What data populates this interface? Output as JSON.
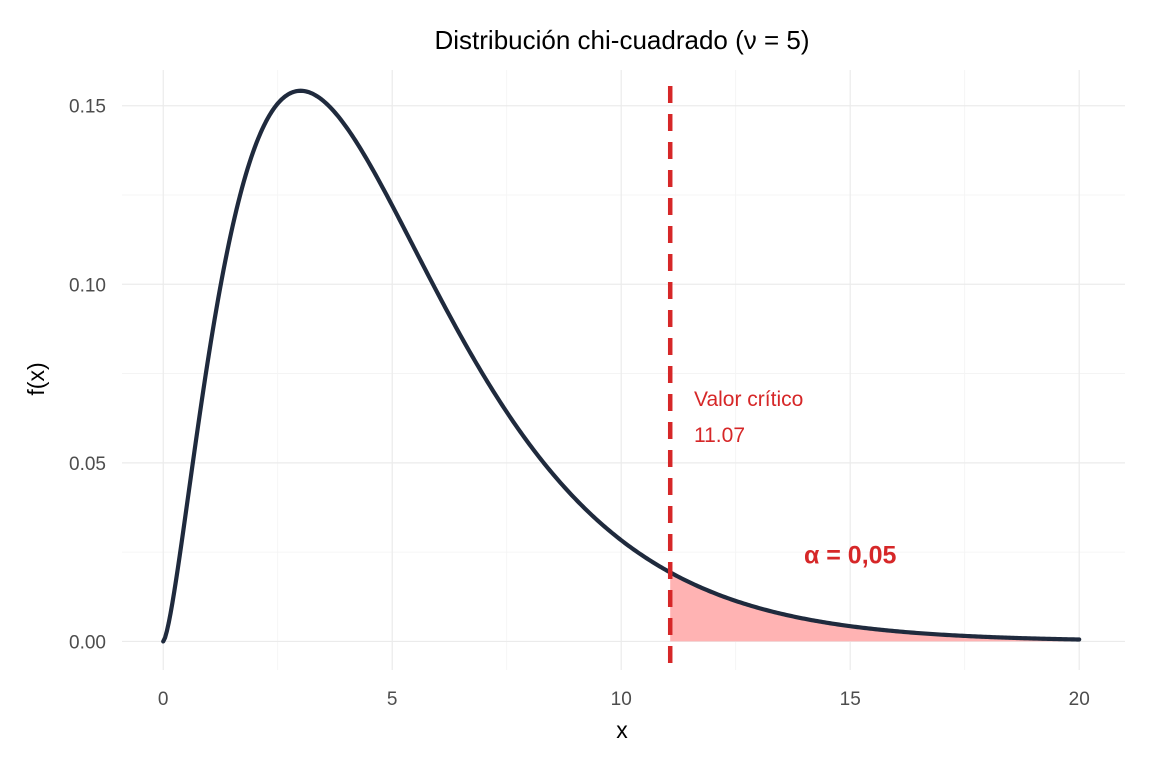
{
  "chart_data": {
    "type": "line",
    "title": "Distribución chi-cuadrado (ν = 5)",
    "xlabel": "x",
    "ylabel": "f(x)",
    "xlim": [
      -0.9,
      21
    ],
    "ylim": [
      -0.008,
      0.16
    ],
    "x_ticks": [
      0,
      5,
      10,
      15,
      20
    ],
    "x_tick_labels": [
      "0",
      "5",
      "10",
      "15",
      "20"
    ],
    "y_ticks": [
      0.0,
      0.05,
      0.1,
      0.15
    ],
    "y_tick_labels": [
      "0.00",
      "0.05",
      "0.10",
      "0.15"
    ],
    "grid": true,
    "series": [
      {
        "degrees_of_freedom": 5,
        "color": "#1f2a3d",
        "x": [
          0,
          0.25,
          0.5,
          0.75,
          1,
          1.5,
          2,
          2.5,
          3,
          3.5,
          4,
          4.5,
          5,
          5.5,
          6,
          6.5,
          7,
          7.5,
          8,
          8.5,
          9,
          9.5,
          10,
          10.5,
          11,
          11.07,
          11.5,
          12,
          12.5,
          13,
          13.5,
          14,
          14.5,
          15,
          15.5,
          16,
          16.5,
          17,
          17.5,
          18,
          18.5,
          19,
          19.5,
          20
        ],
        "y": [
          0,
          0.0087,
          0.0366,
          0.0684,
          0.0807,
          0.1168,
          0.1384,
          0.15,
          0.1542,
          0.1531,
          0.1465,
          0.1384,
          0.122,
          0.1097,
          0.0973,
          0.0855,
          0.0744,
          0.0642,
          0.0551,
          0.0469,
          0.0398,
          0.0336,
          0.0282,
          0.0236,
          0.0197,
          0.0193,
          0.0164,
          0.0136,
          0.0112,
          0.0092,
          0.0076,
          0.0062,
          0.0051,
          0.0042,
          0.0034,
          0.0028,
          0.0022,
          0.0018,
          0.0015,
          0.0012,
          0.001,
          0.0008,
          0.0006,
          0.0005
        ]
      }
    ],
    "critical_value": 11.07,
    "critical_line_color": "#d62728",
    "shaded_region": {
      "from": 11.07,
      "to": 20,
      "color": "#ffb3b3"
    },
    "annotations": {
      "critical_label": "Valor crítico",
      "critical_value_label": "11.07",
      "alpha_label": "α = 0,05",
      "alpha_position": {
        "x": 15,
        "y": 0.024
      }
    }
  }
}
